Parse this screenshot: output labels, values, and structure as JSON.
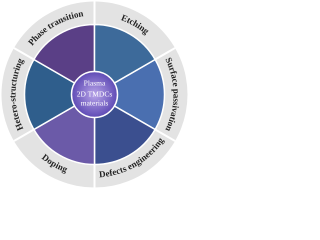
{
  "center": {
    "lines": [
      "Plasma",
      "2D TMDCs",
      "materials"
    ]
  },
  "sectors": [
    {
      "label": "Surface passivation"
    },
    {
      "label": "Defects engineering"
    },
    {
      "label": "Doping"
    },
    {
      "label": "Hetero-structuring"
    },
    {
      "label": "Phase transition"
    },
    {
      "label": "Etching"
    }
  ]
}
